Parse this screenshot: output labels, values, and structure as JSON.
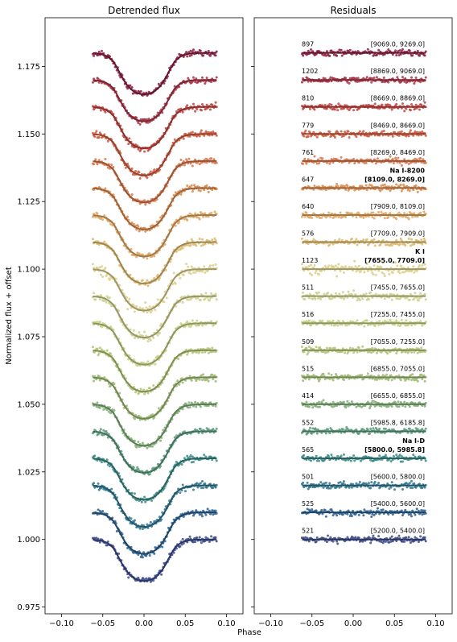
{
  "chart_data": [
    {
      "type": "scatter",
      "title": "Detrended flux",
      "xlabel": "Phase",
      "ylabel": "Normalized flux + offset",
      "xlim": [
        -0.12,
        0.12
      ],
      "ylim": [
        0.9725,
        1.193
      ],
      "xticks": [
        "−0.10",
        "−0.05",
        "0.00",
        "0.05",
        "0.10"
      ],
      "xtick_values": [
        -0.1,
        -0.05,
        0.0,
        0.05,
        0.1
      ],
      "yticks": [
        "0.975",
        "1.000",
        "1.025",
        "1.050",
        "1.075",
        "1.100",
        "1.125",
        "1.150",
        "1.175"
      ],
      "ytick_values": [
        0.975,
        1.0,
        1.025,
        1.05,
        1.075,
        1.1,
        1.125,
        1.15,
        1.175
      ],
      "phase_range": [
        -0.062,
        0.088
      ],
      "transit_model": {
        "ingress_center": -0.033,
        "egress_center": 0.033,
        "edge_width": 0.0065,
        "depth": 0.0155
      },
      "series": [
        {
          "offset": 1.0,
          "color": "#3b4a8a"
        },
        {
          "offset": 1.01,
          "color": "#2b5f8e"
        },
        {
          "offset": 1.02,
          "color": "#2f7690"
        },
        {
          "offset": 1.03,
          "color": "#3b8a86"
        },
        {
          "offset": 1.04,
          "color": "#5c9a7c"
        },
        {
          "offset": 1.05,
          "color": "#80ad76"
        },
        {
          "offset": 1.06,
          "color": "#9eba74"
        },
        {
          "offset": 1.07,
          "color": "#b2c576"
        },
        {
          "offset": 1.08,
          "color": "#c6cf84"
        },
        {
          "offset": 1.09,
          "color": "#cfd08e"
        },
        {
          "offset": 1.1,
          "color": "#dcd08c"
        },
        {
          "offset": 1.11,
          "color": "#dcba6e"
        },
        {
          "offset": 1.12,
          "color": "#dfa764"
        },
        {
          "offset": 1.13,
          "color": "#d9894e"
        },
        {
          "offset": 1.14,
          "color": "#d6744a"
        },
        {
          "offset": 1.15,
          "color": "#cd5a3f"
        },
        {
          "offset": 1.16,
          "color": "#c0443f"
        },
        {
          "offset": 1.17,
          "color": "#a83445"
        },
        {
          "offset": 1.18,
          "color": "#8a1f3f"
        }
      ]
    },
    {
      "type": "scatter",
      "title": "Residuals",
      "xlim": [
        -0.12,
        0.12
      ],
      "xticks": [
        "−0.10",
        "−0.05",
        "0.00",
        "0.05",
        "0.10"
      ],
      "xtick_values": [
        -0.1,
        -0.05,
        0.0,
        0.05,
        0.1
      ],
      "series": [
        {
          "offset": 1.0,
          "count": "521",
          "range": "[5200.0, 5400.0]"
        },
        {
          "offset": 1.01,
          "count": "525",
          "range": "[5400.0, 5600.0]"
        },
        {
          "offset": 1.02,
          "count": "501",
          "range": "[5600.0, 5800.0]"
        },
        {
          "offset": 1.03,
          "count": "565",
          "range": "[5800.0, 5985.8]",
          "species": "Na I-D"
        },
        {
          "offset": 1.04,
          "count": "552",
          "range": "[5985.8, 6185.8]"
        },
        {
          "offset": 1.05,
          "count": "414",
          "range": "[6655.0, 6855.0]"
        },
        {
          "offset": 1.06,
          "count": "515",
          "range": "[6855.0, 7055.0]"
        },
        {
          "offset": 1.07,
          "count": "509",
          "range": "[7055.0, 7255.0]"
        },
        {
          "offset": 1.08,
          "count": "516",
          "range": "[7255.0, 7455.0]"
        },
        {
          "offset": 1.09,
          "count": "511",
          "range": "[7455.0, 7655.0]"
        },
        {
          "offset": 1.1,
          "count": "1123",
          "range": "[7655.0, 7709.0]",
          "species": "K I"
        },
        {
          "offset": 1.11,
          "count": "576",
          "range": "[7709.0, 7909.0]"
        },
        {
          "offset": 1.12,
          "count": "640",
          "range": "[7909.0, 8109.0]"
        },
        {
          "offset": 1.13,
          "count": "647",
          "range": "[8109.0, 8269.0]",
          "species": "Na I-8200"
        },
        {
          "offset": 1.14,
          "count": "761",
          "range": "[8269.0, 8469.0]"
        },
        {
          "offset": 1.15,
          "count": "779",
          "range": "[8469.0, 8669.0]"
        },
        {
          "offset": 1.16,
          "count": "810",
          "range": "[8669.0, 8869.0]"
        },
        {
          "offset": 1.17,
          "count": "1202",
          "range": "[8869.0, 9069.0]"
        },
        {
          "offset": 1.18,
          "count": "897",
          "range": "[9069.0, 9269.0]"
        }
      ]
    }
  ]
}
